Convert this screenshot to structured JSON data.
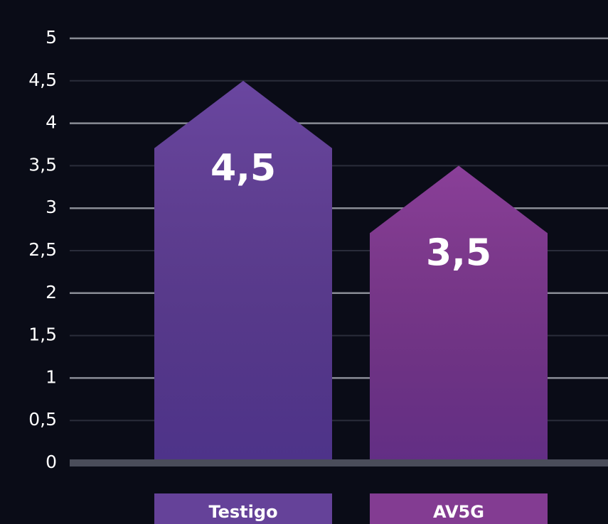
{
  "chart_data": {
    "type": "bar",
    "categories": [
      "Testigo",
      "AV5G"
    ],
    "values": [
      4.5,
      3.5
    ],
    "value_labels": [
      "4,5",
      "3,5"
    ],
    "colors": [
      "#6a46a0",
      "#8a3f99"
    ],
    "ylim": [
      0,
      5
    ],
    "yticks": [
      0,
      {
        "value": 0.5,
        "label": "0,5"
      },
      1,
      {
        "value": 1.5,
        "label": "1,5"
      },
      2,
      {
        "value": 2.5,
        "label": "2,5"
      },
      3,
      {
        "value": 3.5,
        "label": "3,5"
      },
      4,
      {
        "value": 4.5,
        "label": "4,5"
      },
      5
    ],
    "grid": true
  }
}
